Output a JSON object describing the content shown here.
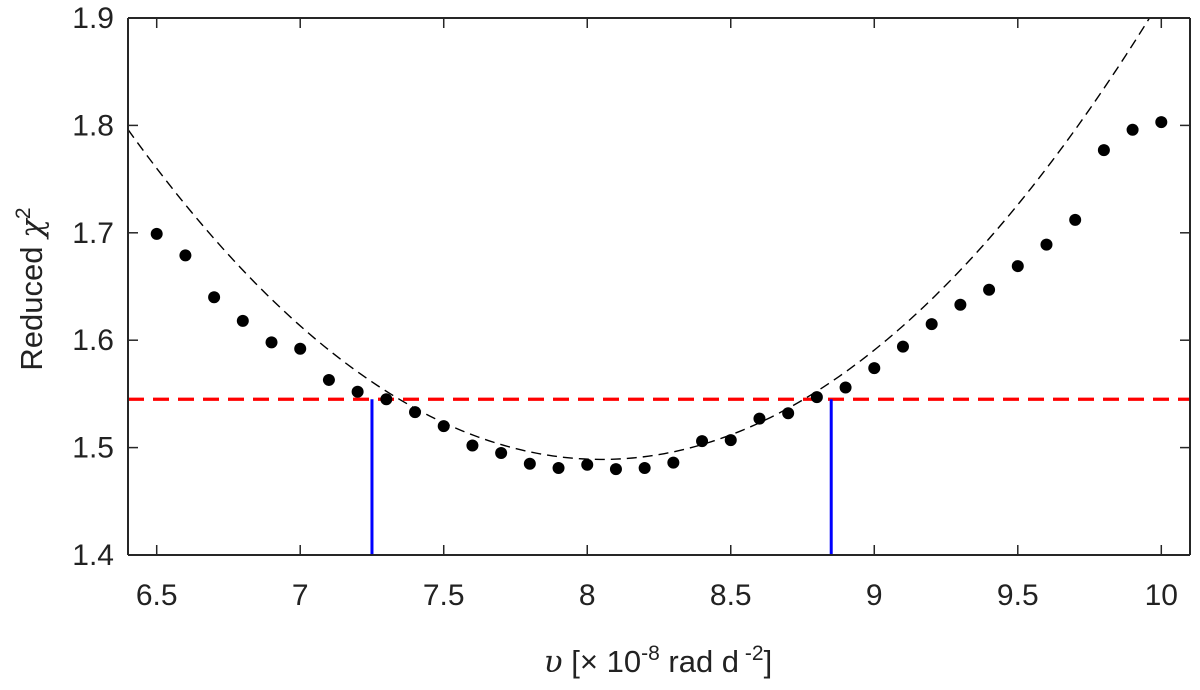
{
  "chart_data": {
    "type": "scatter",
    "xlabel": {
      "symbol": "υ",
      "prefix": " [× 10",
      "exp": "-8",
      "mid": " rad d",
      "exp2": " -2",
      "suffix": "]"
    },
    "ylabel": {
      "text": "Reduced ",
      "symbol": "χ",
      "exp": "2"
    },
    "xlim": [
      6.4,
      10.1
    ],
    "ylim": [
      1.4,
      1.9
    ],
    "xticks": [
      6.5,
      7,
      7.5,
      8,
      8.5,
      9,
      9.5,
      10
    ],
    "xtick_labels": [
      "6.5",
      "7",
      "7.5",
      "8",
      "8.5",
      "9",
      "9.5",
      "10"
    ],
    "yticks": [
      1.4,
      1.5,
      1.6,
      1.7,
      1.8,
      1.9
    ],
    "ytick_labels": [
      "1.4",
      "1.5",
      "1.6",
      "1.7",
      "1.8",
      "1.9"
    ],
    "grid": false,
    "series": [
      {
        "type": "scatter",
        "color": "#000000",
        "points": [
          [
            6.5,
            1.699
          ],
          [
            6.6,
            1.679
          ],
          [
            6.7,
            1.64
          ],
          [
            6.8,
            1.618
          ],
          [
            6.9,
            1.598
          ],
          [
            7.0,
            1.592
          ],
          [
            7.1,
            1.563
          ],
          [
            7.2,
            1.552
          ],
          [
            7.3,
            1.545
          ],
          [
            7.4,
            1.533
          ],
          [
            7.5,
            1.52
          ],
          [
            7.6,
            1.502
          ],
          [
            7.7,
            1.495
          ],
          [
            7.8,
            1.485
          ],
          [
            7.9,
            1.481
          ],
          [
            8.0,
            1.484
          ],
          [
            8.1,
            1.48
          ],
          [
            8.2,
            1.481
          ],
          [
            8.3,
            1.486
          ],
          [
            8.4,
            1.506
          ],
          [
            8.5,
            1.507
          ],
          [
            8.6,
            1.527
          ],
          [
            8.7,
            1.532
          ],
          [
            8.8,
            1.547
          ],
          [
            8.9,
            1.556
          ],
          [
            9.0,
            1.574
          ],
          [
            9.1,
            1.594
          ],
          [
            9.2,
            1.615
          ],
          [
            9.3,
            1.633
          ],
          [
            9.4,
            1.647
          ],
          [
            9.5,
            1.669
          ],
          [
            9.6,
            1.689
          ],
          [
            9.7,
            1.712
          ],
          [
            9.8,
            1.777
          ],
          [
            9.9,
            1.796
          ],
          [
            10.0,
            1.803
          ]
        ]
      },
      {
        "type": "line",
        "style": "dashed",
        "color": "#000000",
        "description_fit": "quadratic",
        "vertex_x": 8.05,
        "vertex_y": 1.489,
        "coefficient": 0.1128
      },
      {
        "type": "hline",
        "style": "dashed",
        "color": "#ff0000",
        "y": 1.545
      },
      {
        "type": "vline",
        "color": "#0000ff",
        "x": 7.25,
        "y_range": [
          1.4,
          1.545
        ]
      },
      {
        "type": "vline",
        "color": "#0000ff",
        "x": 8.85,
        "y_range": [
          1.4,
          1.545
        ]
      }
    ]
  }
}
